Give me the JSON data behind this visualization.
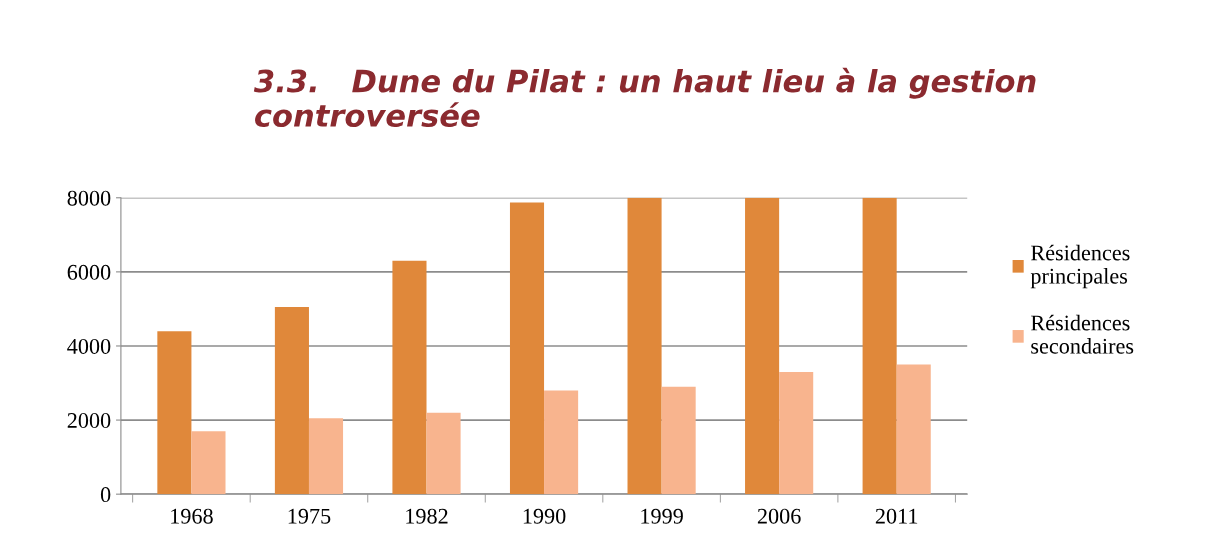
{
  "chart_data": {
    "type": "bar",
    "title": "3.3.   Dune du Pilat : un haut lieu à la gestion controversée",
    "categories": [
      "1968",
      "1975",
      "1982",
      "1990",
      "1999",
      "2006",
      "2011"
    ],
    "series": [
      {
        "name": "Résidences principales",
        "color": "#e0883a",
        "values": [
          4400,
          5050,
          6300,
          7870,
          8000,
          8000,
          8000
        ]
      },
      {
        "name": "Résidences secondaires",
        "color": "#f8b48e",
        "values": [
          1700,
          2050,
          2200,
          2800,
          2900,
          3300,
          3500
        ]
      }
    ],
    "ylim": [
      0,
      8000
    ],
    "yticks": [
      0,
      2000,
      4000,
      6000,
      8000
    ],
    "grid": "y",
    "legend": "right"
  }
}
